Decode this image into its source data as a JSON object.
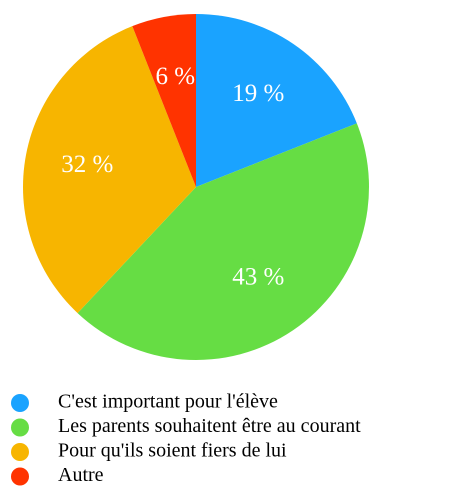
{
  "chart_data": {
    "type": "pie",
    "categories": [
      "C'est important pour l'élève",
      "Les parents souhaitent être au courant",
      "Pour qu'ils soient fiers de lui",
      "Autre"
    ],
    "values": [
      19,
      43,
      32,
      6
    ],
    "value_labels": [
      "19 %",
      "43 %",
      "32 %",
      "6 %"
    ],
    "colors": [
      "#1aa3ff",
      "#66dd44",
      "#f7b500",
      "#ff3300"
    ]
  }
}
